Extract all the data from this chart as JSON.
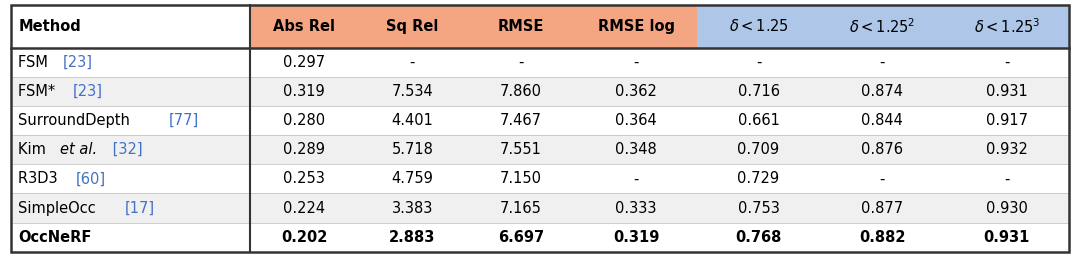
{
  "header_bg_colors": [
    "#ffffff",
    "#f4a582",
    "#f4a582",
    "#f4a582",
    "#f4a582",
    "#aec6e8",
    "#aec6e8",
    "#aec6e8"
  ],
  "rows": [
    [
      "FSM ",
      "[23]",
      "0.297",
      "-",
      "-",
      "-",
      "-",
      "-",
      "-"
    ],
    [
      "FSM* ",
      "[23]",
      "0.319",
      "7.534",
      "7.860",
      "0.362",
      "0.716",
      "0.874",
      "0.931"
    ],
    [
      "SurroundDepth ",
      "[77]",
      "0.280",
      "4.401",
      "7.467",
      "0.364",
      "0.661",
      "0.844",
      "0.917"
    ],
    [
      "Kim ",
      "[32]",
      "0.289",
      "5.718",
      "7.551",
      "0.348",
      "0.709",
      "0.876",
      "0.932"
    ],
    [
      "R3D3 ",
      "[60]",
      "0.253",
      "4.759",
      "7.150",
      "-",
      "0.729",
      "-",
      "-"
    ],
    [
      "SimpleOcc ",
      "[17]",
      "0.224",
      "3.383",
      "7.165",
      "0.333",
      "0.753",
      "0.877",
      "0.930"
    ],
    [
      "OccNeRF",
      "",
      "0.202",
      "2.883",
      "6.697",
      "0.319",
      "0.768",
      "0.882",
      "0.931"
    ]
  ],
  "kim_italic": true,
  "bold_row": 6,
  "outer_border_color": "#333333",
  "header_text_color": "#000000",
  "blue_color": "#4472c4",
  "black": "#000000",
  "figsize": [
    10.8,
    2.57
  ],
  "dpi": 100
}
